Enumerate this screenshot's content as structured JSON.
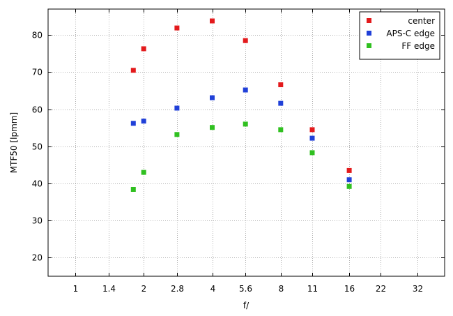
{
  "chart_data": {
    "type": "scatter",
    "title": "",
    "xlabel": "f/",
    "ylabel": "MTF50 [lpmm]",
    "x_scale": "log",
    "x_ticks": [
      "1",
      "1.4",
      "2",
      "2.8",
      "4",
      "5.6",
      "8",
      "11",
      "16",
      "22",
      "32"
    ],
    "x_tick_values": [
      1,
      1.4,
      2,
      2.8,
      4,
      5.6,
      8,
      11,
      16,
      22,
      32
    ],
    "xlim": [
      0.76,
      42
    ],
    "y_ticks": [
      "20",
      "30",
      "40",
      "50",
      "60",
      "70",
      "80"
    ],
    "y_tick_values": [
      20,
      30,
      40,
      50,
      60,
      70,
      80
    ],
    "ylim": [
      15,
      87
    ],
    "grid": true,
    "legend_position": "top-right",
    "series": [
      {
        "name": "center",
        "color": "#e31a1c",
        "x": [
          1.8,
          2,
          2.8,
          4,
          5.6,
          8,
          11,
          16
        ],
        "y": [
          70.5,
          76.3,
          81.9,
          83.8,
          78.5,
          66.6,
          54.5,
          43.5
        ]
      },
      {
        "name": "APS-C edge",
        "color": "#2040d8",
        "x": [
          1.8,
          2,
          2.8,
          4,
          5.6,
          8,
          11,
          16
        ],
        "y": [
          56.2,
          56.8,
          60.3,
          63.1,
          65.2,
          61.6,
          52.2,
          41.0
        ]
      },
      {
        "name": "FF edge",
        "color": "#30c020",
        "x": [
          1.8,
          2,
          2.8,
          4,
          5.6,
          8,
          11,
          16
        ],
        "y": [
          38.4,
          43.0,
          53.2,
          55.1,
          56.0,
          54.5,
          48.3,
          39.2
        ]
      }
    ]
  }
}
